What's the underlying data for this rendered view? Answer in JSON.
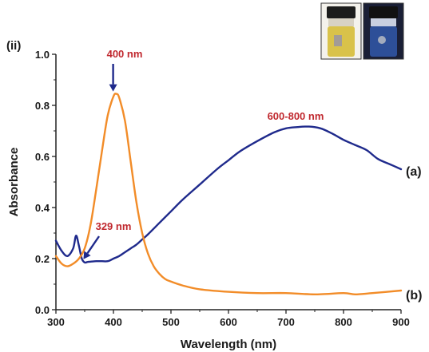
{
  "panel_label": "(ii)",
  "chart_data": {
    "type": "line",
    "xlabel": "Wavelength (nm)",
    "ylabel": "Absorbance",
    "xlim": [
      300,
      900
    ],
    "ylim": [
      0.0,
      1.0
    ],
    "xticks": [
      300,
      400,
      500,
      600,
      700,
      800,
      900
    ],
    "yticks": [
      0.0,
      0.2,
      0.4,
      0.6,
      0.8,
      1.0
    ],
    "ytick_labels": [
      "0.0",
      "0.2",
      "0.4",
      "0.6",
      "0.8",
      "1.0"
    ],
    "grid": false,
    "series": [
      {
        "name": "(a)",
        "color": "#1f2a8c",
        "x": [
          300,
          310,
          320,
          330,
          335,
          340,
          345,
          350,
          355,
          360,
          370,
          380,
          390,
          400,
          410,
          420,
          430,
          440,
          450,
          460,
          480,
          500,
          520,
          550,
          580,
          600,
          620,
          650,
          680,
          700,
          720,
          740,
          760,
          780,
          800,
          820,
          840,
          860,
          880,
          900
        ],
        "y": [
          0.27,
          0.23,
          0.21,
          0.24,
          0.29,
          0.25,
          0.2,
          0.185,
          0.187,
          0.188,
          0.19,
          0.19,
          0.19,
          0.2,
          0.21,
          0.225,
          0.24,
          0.255,
          0.275,
          0.295,
          0.34,
          0.385,
          0.43,
          0.49,
          0.55,
          0.585,
          0.62,
          0.66,
          0.695,
          0.71,
          0.715,
          0.717,
          0.71,
          0.69,
          0.665,
          0.645,
          0.625,
          0.59,
          0.57,
          0.55
        ]
      },
      {
        "name": "(b)",
        "color": "#f28c28",
        "x": [
          300,
          310,
          320,
          330,
          340,
          350,
          360,
          370,
          380,
          390,
          400,
          405,
          410,
          420,
          430,
          440,
          450,
          460,
          470,
          480,
          490,
          500,
          520,
          550,
          600,
          650,
          700,
          750,
          800,
          820,
          850,
          900
        ],
        "y": [
          0.21,
          0.18,
          0.17,
          0.18,
          0.2,
          0.24,
          0.33,
          0.47,
          0.62,
          0.76,
          0.835,
          0.845,
          0.83,
          0.74,
          0.58,
          0.42,
          0.3,
          0.22,
          0.17,
          0.14,
          0.12,
          0.11,
          0.095,
          0.08,
          0.07,
          0.065,
          0.065,
          0.06,
          0.065,
          0.06,
          0.065,
          0.075
        ]
      }
    ],
    "annotations": [
      {
        "text": "400 nm",
        "color": "#c0282e",
        "points_to": {
          "x": 405,
          "y": 0.845
        },
        "arrow_color": "#1f2a8c"
      },
      {
        "text": "600-800 nm",
        "color": "#c0282e"
      },
      {
        "text": "329 nm",
        "color": "#c0282e",
        "points_to": {
          "x": 345,
          "y": 0.21
        },
        "arrow_color": "#1f2a8c"
      }
    ]
  },
  "inset": {
    "vials": [
      {
        "liquid_color": "#d9c24a",
        "label": "vial-a"
      },
      {
        "liquid_color": "#2d4f98",
        "label": "vial-b"
      }
    ]
  }
}
